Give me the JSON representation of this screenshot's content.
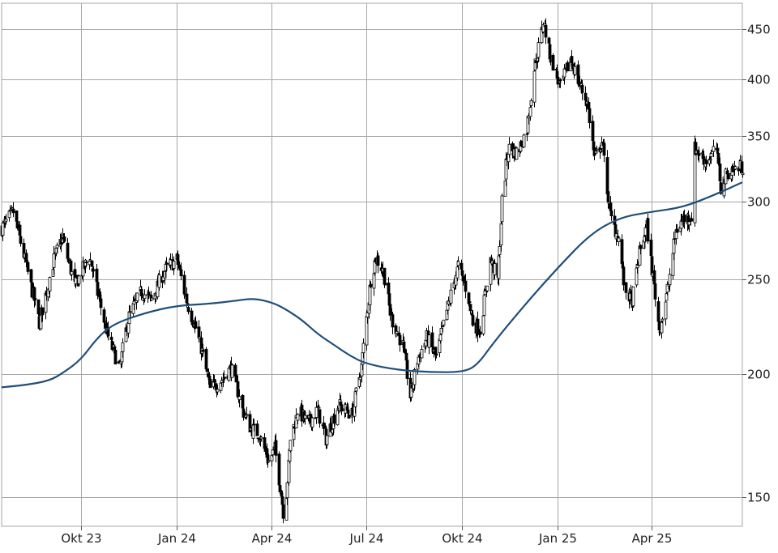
{
  "chart_data": {
    "type": "candlestick",
    "title": "",
    "xlabel": "",
    "ylabel": "",
    "y_scale": "log",
    "ylim": [
      140,
      478
    ],
    "xlim": [
      "2023-07-17",
      "2025-06-27"
    ],
    "grid": true,
    "y_ticks": [
      150,
      200,
      250,
      300,
      350,
      400,
      450
    ],
    "x_ticks": [
      {
        "date": "2023-10-01",
        "label": "Okt 23"
      },
      {
        "date": "2024-01-01",
        "label": "Jan 24"
      },
      {
        "date": "2024-04-01",
        "label": "Apr 24"
      },
      {
        "date": "2024-07-01",
        "label": "Jul 24"
      },
      {
        "date": "2024-10-01",
        "label": "Okt 24"
      },
      {
        "date": "2025-01-01",
        "label": "Jan 25"
      },
      {
        "date": "2025-04-01",
        "label": "Apr 25"
      }
    ],
    "colors": {
      "candle": "#000000",
      "moving_average": "#1f4e79",
      "grid": "#a6a6a6"
    },
    "price_path": [
      [
        "2023-07-17",
        282
      ],
      [
        "2023-07-28",
        293
      ],
      [
        "2023-08-08",
        262
      ],
      [
        "2023-08-22",
        226
      ],
      [
        "2023-09-05",
        262
      ],
      [
        "2023-09-13",
        276
      ],
      [
        "2023-09-25",
        246
      ],
      [
        "2023-10-09",
        264
      ],
      [
        "2023-10-17",
        242
      ],
      [
        "2023-10-26",
        220
      ],
      [
        "2023-11-07",
        203
      ],
      [
        "2023-11-15",
        228
      ],
      [
        "2023-11-28",
        243
      ],
      [
        "2023-12-07",
        238
      ],
      [
        "2023-12-20",
        255
      ],
      [
        "2024-01-01",
        262
      ],
      [
        "2024-01-10",
        238
      ],
      [
        "2024-01-19",
        223
      ],
      [
        "2024-01-26",
        209
      ],
      [
        "2024-02-02",
        193
      ],
      [
        "2024-02-14",
        198
      ],
      [
        "2024-02-22",
        203
      ],
      [
        "2024-03-04",
        184
      ],
      [
        "2024-03-12",
        176
      ],
      [
        "2024-03-20",
        174
      ],
      [
        "2024-03-29",
        163
      ],
      [
        "2024-04-04",
        168
      ],
      [
        "2024-04-09",
        154
      ],
      [
        "2024-04-13",
        142
      ],
      [
        "2024-04-19",
        172
      ],
      [
        "2024-04-26",
        184
      ],
      [
        "2024-05-06",
        178
      ],
      [
        "2024-05-15",
        184
      ],
      [
        "2024-05-23",
        172
      ],
      [
        "2024-06-04",
        186
      ],
      [
        "2024-06-17",
        182
      ],
      [
        "2024-06-26",
        204
      ],
      [
        "2024-07-05",
        250
      ],
      [
        "2024-07-10",
        263
      ],
      [
        "2024-07-17",
        255
      ],
      [
        "2024-07-25",
        228
      ],
      [
        "2024-08-05",
        214
      ],
      [
        "2024-08-12",
        190
      ],
      [
        "2024-08-19",
        207
      ],
      [
        "2024-08-28",
        218
      ],
      [
        "2024-09-06",
        208
      ],
      [
        "2024-09-16",
        232
      ],
      [
        "2024-09-27",
        258
      ],
      [
        "2024-10-06",
        242
      ],
      [
        "2024-10-11",
        226
      ],
      [
        "2024-10-18",
        222
      ],
      [
        "2024-10-28",
        262
      ],
      [
        "2024-11-04",
        250
      ],
      [
        "2024-11-08",
        300
      ],
      [
        "2024-11-14",
        340
      ],
      [
        "2024-11-23",
        336
      ],
      [
        "2024-12-02",
        356
      ],
      [
        "2024-12-09",
        410
      ],
      [
        "2024-12-18",
        458
      ],
      [
        "2024-12-23",
        428
      ],
      [
        "2025-01-03",
        392
      ],
      [
        "2025-01-13",
        420
      ],
      [
        "2025-01-21",
        396
      ],
      [
        "2025-01-29",
        378
      ],
      [
        "2025-02-05",
        332
      ],
      [
        "2025-02-12",
        345
      ],
      [
        "2025-02-20",
        290
      ],
      [
        "2025-02-28",
        275
      ],
      [
        "2025-03-06",
        244
      ],
      [
        "2025-03-13",
        238
      ],
      [
        "2025-03-20",
        266
      ],
      [
        "2025-03-27",
        283
      ],
      [
        "2025-04-03",
        246
      ],
      [
        "2025-04-08",
        222
      ],
      [
        "2025-04-15",
        240
      ],
      [
        "2025-04-24",
        280
      ],
      [
        "2025-05-01",
        288
      ],
      [
        "2025-05-09",
        290
      ],
      [
        "2025-05-12",
        340
      ],
      [
        "2025-05-23",
        330
      ],
      [
        "2025-06-02",
        340
      ],
      [
        "2025-06-06",
        310
      ],
      [
        "2025-06-13",
        322
      ],
      [
        "2025-06-27",
        326
      ]
    ],
    "moving_average": [
      [
        "2023-07-17",
        194
      ],
      [
        "2023-08-08",
        195
      ],
      [
        "2023-09-01",
        197
      ],
      [
        "2023-09-15",
        201
      ],
      [
        "2023-10-01",
        207
      ],
      [
        "2023-10-17",
        218
      ],
      [
        "2023-11-01",
        225
      ],
      [
        "2023-12-01",
        231
      ],
      [
        "2024-01-01",
        235
      ],
      [
        "2024-02-01",
        236
      ],
      [
        "2024-03-01",
        238
      ],
      [
        "2024-03-15",
        239
      ],
      [
        "2024-04-01",
        237
      ],
      [
        "2024-04-15",
        233
      ],
      [
        "2024-05-01",
        227
      ],
      [
        "2024-05-15",
        220
      ],
      [
        "2024-06-01",
        214
      ],
      [
        "2024-06-15",
        209
      ],
      [
        "2024-07-01",
        205
      ],
      [
        "2024-08-01",
        202
      ],
      [
        "2024-09-01",
        201
      ],
      [
        "2024-10-01",
        201
      ],
      [
        "2024-10-15",
        204
      ],
      [
        "2024-11-01",
        216
      ],
      [
        "2024-12-01",
        236
      ],
      [
        "2025-01-01",
        257
      ],
      [
        "2025-02-01",
        278
      ],
      [
        "2025-03-01",
        289
      ],
      [
        "2025-04-01",
        293
      ],
      [
        "2025-05-01",
        296
      ],
      [
        "2025-06-01",
        305
      ],
      [
        "2025-06-27",
        314
      ]
    ]
  }
}
